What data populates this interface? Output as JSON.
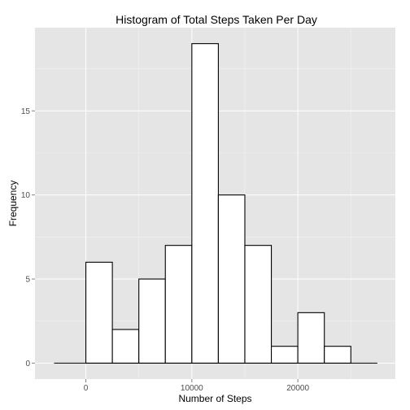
{
  "chart_data": {
    "type": "bar",
    "title": "Histogram of Total Steps Taken Per Day",
    "xlabel": "Number of Steps",
    "ylabel": "Frequency",
    "bin_width": 2500,
    "bins": [
      {
        "start": 0,
        "end": 2500,
        "count": 6
      },
      {
        "start": 2500,
        "end": 5000,
        "count": 2
      },
      {
        "start": 5000,
        "end": 7500,
        "count": 5
      },
      {
        "start": 7500,
        "end": 10000,
        "count": 7
      },
      {
        "start": 10000,
        "end": 12500,
        "count": 19
      },
      {
        "start": 12500,
        "end": 15000,
        "count": 10
      },
      {
        "start": 15000,
        "end": 17500,
        "count": 7
      },
      {
        "start": 17500,
        "end": 20000,
        "count": 1
      },
      {
        "start": 20000,
        "end": 22500,
        "count": 3
      },
      {
        "start": 22500,
        "end": 25000,
        "count": 1
      }
    ],
    "baseline_range": [
      -3000,
      27500
    ],
    "xlim": [
      -4800,
      29200
    ],
    "ylim": [
      -0.95,
      19.95
    ],
    "x_ticks": [
      0,
      10000,
      20000
    ],
    "x_tick_labels": [
      "0",
      "10000",
      "20000"
    ],
    "x_minor_ticks": [
      -5000,
      5000,
      15000,
      25000
    ],
    "y_ticks": [
      0,
      5,
      10,
      15
    ],
    "y_tick_labels": [
      "0",
      "5",
      "10",
      "15"
    ],
    "y_minor_ticks": [
      2.5,
      7.5,
      12.5,
      17.5
    ],
    "grid": true,
    "colors": {
      "panel": "#e5e5e5",
      "grid_major": "#ffffff",
      "grid_minor": "#f2f2f2",
      "bar_fill": "#ffffff",
      "bar_outline": "#000000",
      "tick_text": "#4d4d4d"
    }
  }
}
